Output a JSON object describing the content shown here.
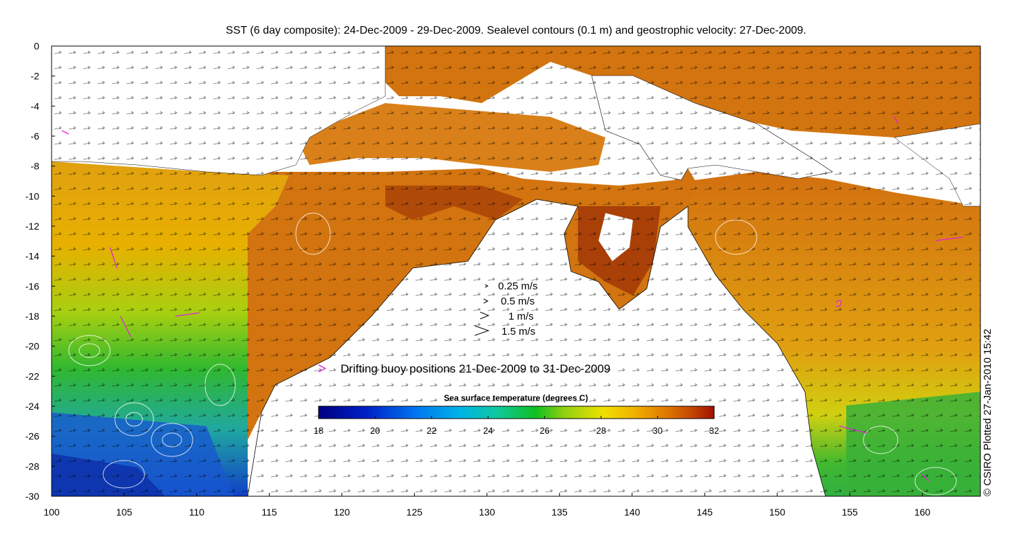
{
  "title": "SST (6 day composite): 24-Dec-2009 - 29-Dec-2009. Sealevel contours (0.1 m) and geostrophic velocity: 27-Dec-2009.",
  "credit": "© CSIRO Plotted 27-Jan-2010 15:42",
  "colors": {
    "land": "#ffffff",
    "ocean_warm": "#d2740f",
    "ocean_hot": "#b04a08",
    "ocean_mid": "#e8b000",
    "ocean_cool": "#2fb02f",
    "ocean_cold": "#1e64d8",
    "buoy": "#e020e0",
    "arrow": "#000000",
    "contour": "#ffffff"
  },
  "chart_data": {
    "type": "heatmap",
    "title": "SST (6 day composite): 24-Dec-2009 - 29-Dec-2009. Sealevel contours (0.1 m) and geostrophic velocity: 27-Dec-2009.",
    "xlim": [
      100,
      164
    ],
    "ylim": [
      -30,
      0
    ],
    "x_ticks": [
      "100",
      "105",
      "110",
      "115",
      "120",
      "125",
      "130",
      "135",
      "140",
      "145",
      "150",
      "155",
      "160"
    ],
    "y_ticks": [
      "0",
      "-2",
      "-4",
      "-6",
      "-8",
      "-10",
      "-12",
      "-14",
      "-16",
      "-18",
      "-20",
      "-22",
      "-24",
      "-26",
      "-28",
      "-30"
    ],
    "colorbar": {
      "title": "Sea surface temperature (degrees C)",
      "min": 18,
      "max": 32,
      "ticks": [
        "18",
        "20",
        "22",
        "24",
        "26",
        "28",
        "30",
        "32"
      ]
    },
    "velocity_legend": [
      {
        "label": "0.25 m/s",
        "speed": 0.25
      },
      {
        "label": "0.5 m/s",
        "speed": 0.5
      },
      {
        "label": "1 m/s",
        "speed": 1
      },
      {
        "label": "1.5 m/s",
        "speed": 1.5
      }
    ],
    "buoy_legend": "Drifting buoy positions 21-Dec-2009 to 31-Dec-2009"
  }
}
